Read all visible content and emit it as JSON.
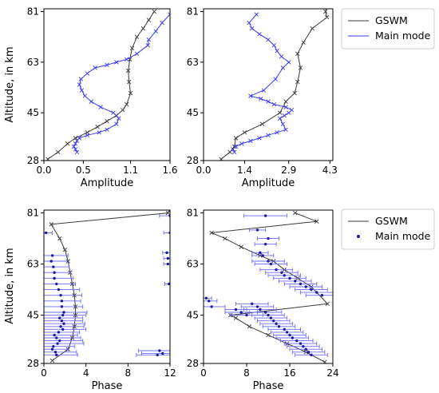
{
  "ylabel": "Altitude, in km",
  "legend_top": [
    "GSWM",
    "Main mode"
  ],
  "legend_bottom": [
    "GSWM",
    "Main mode"
  ],
  "colors": {
    "gswm": "#3a3a3a",
    "main": "#3b3bf5"
  },
  "chart_data": [
    {
      "type": "line",
      "xlabel": "Amplitude",
      "xlim": [
        0,
        1.6
      ],
      "ylim": [
        28,
        82
      ],
      "xticks": [
        0.0,
        0.5,
        1.1,
        1.6
      ],
      "xtick_labels": [
        "0.0",
        "0.5",
        "1.1",
        "1.6"
      ],
      "yticks": [
        28,
        45,
        63,
        81
      ],
      "ytick_labels": [
        "28",
        "45",
        "63",
        "81"
      ],
      "series": [
        {
          "name": "GSWM",
          "x": [
            0.05,
            0.18,
            0.3,
            0.4,
            0.55,
            0.68,
            0.8,
            0.92,
            1.0,
            1.05,
            1.1,
            1.08,
            1.07,
            1.09,
            1.12,
            1.18,
            1.26,
            1.33,
            1.4
          ],
          "y": [
            28.5,
            31,
            34,
            36,
            38,
            40,
            42,
            44,
            46,
            48,
            52,
            56,
            60,
            64,
            68,
            72,
            75,
            78,
            81
          ]
        },
        {
          "name": "Main mode",
          "x": [
            0.42,
            0.4,
            0.38,
            0.4,
            0.42,
            0.45,
            0.55,
            0.7,
            0.8,
            0.92,
            0.95,
            0.88,
            0.72,
            0.6,
            0.52,
            0.48,
            0.45,
            0.47,
            0.55,
            0.65,
            0.8,
            0.92,
            1.05,
            1.18,
            1.32,
            1.33,
            1.42,
            1.5,
            1.6
          ],
          "y": [
            31,
            32,
            33,
            34,
            35,
            36,
            37,
            38,
            39,
            41,
            43,
            45,
            47,
            49,
            51,
            53,
            55,
            57,
            59,
            61,
            62,
            63,
            64,
            66,
            69,
            71,
            74,
            77,
            80
          ]
        }
      ]
    },
    {
      "type": "line",
      "xlabel": "Amplitude",
      "xlim": [
        0,
        4.4
      ],
      "ylim": [
        28,
        82
      ],
      "xticks": [
        0.0,
        1.4,
        2.9,
        4.3
      ],
      "xtick_labels": [
        "0.0",
        "1.4",
        "2.9",
        "4.3"
      ],
      "yticks": [
        28,
        45,
        63,
        81
      ],
      "ytick_labels": [
        "28",
        "45",
        "63",
        "81"
      ],
      "series": [
        {
          "name": "GSWM",
          "x": [
            0.6,
            0.9,
            1.05,
            1.1,
            1.4,
            2.0,
            2.6,
            2.8,
            3.1,
            3.2,
            3.3,
            3.2,
            3.4,
            3.7,
            4.2,
            4.15,
            4.2,
            4.3
          ],
          "y": [
            28.5,
            31,
            33,
            36,
            38,
            41,
            45,
            49,
            52,
            56,
            61,
            66,
            70,
            75,
            79,
            81,
            83,
            85
          ]
        },
        {
          "name": "Main mode",
          "x": [
            1.05,
            1.0,
            1.1,
            1.3,
            1.6,
            1.9,
            2.2,
            2.5,
            2.8,
            2.7,
            2.6,
            2.75,
            2.9,
            3.0,
            2.8,
            2.4,
            2.2,
            1.95,
            1.6,
            2.05,
            2.45,
            2.7,
            2.9,
            2.65,
            2.5,
            2.4,
            2.2,
            1.9,
            1.65,
            1.55,
            1.8
          ],
          "y": [
            31,
            32,
            33,
            34,
            35,
            36,
            37,
            38,
            39,
            41,
            43,
            44,
            45,
            46,
            47,
            48,
            49,
            50,
            51,
            53,
            57,
            61,
            63,
            65,
            67,
            69,
            71,
            73,
            75,
            77,
            80
          ]
        }
      ]
    },
    {
      "type": "scatter",
      "xlabel": "Phase",
      "xlim": [
        0,
        12
      ],
      "ylim": [
        28,
        82
      ],
      "xticks": [
        0,
        4,
        8,
        12
      ],
      "xtick_labels": [
        "0",
        "4",
        "8",
        "12"
      ],
      "yticks": [
        28,
        45,
        63,
        81
      ],
      "ytick_labels": [
        "28",
        "45",
        "63",
        "81"
      ],
      "series": [
        {
          "name": "GSWM",
          "x": [
            0.8,
            2.3,
            2.7,
            2.9,
            3.0,
            3.0,
            2.9,
            2.7,
            2.5,
            2.3,
            2.0,
            1.5,
            0.7,
            11.8,
            12.0
          ],
          "y": [
            29,
            33,
            37,
            41,
            45,
            48,
            52,
            56,
            60,
            64,
            68,
            72,
            77,
            81,
            82
          ]
        },
        {
          "name": "Main mode",
          "x": [
            10.8,
            11.3,
            11.0,
            1.2,
            1.1,
            0.8,
            0.9,
            1.3,
            1.5,
            1.2,
            1.0,
            1.4,
            1.8,
            1.6,
            1.9,
            1.7,
            1.5,
            1.8,
            1.9,
            1.7,
            1.7,
            1.6,
            1.4,
            1.2,
            1.0,
            1.0,
            0.9,
            0.7,
            0.8,
            11.9,
            11.8,
            11.8,
            11.7,
            12.0,
            0.2,
            12.0
          ],
          "xerr": [
            2.0,
            2.0,
            2.0,
            2.0,
            2.0,
            1.5,
            2.0,
            2.5,
            2.2,
            2.3,
            2.2,
            2.0,
            2.2,
            2.2,
            2.0,
            2.0,
            2.2,
            2.2,
            2.2,
            2.0,
            1.8,
            2.0,
            2.0,
            1.8,
            1.8,
            1.5,
            1.5,
            1.5,
            1.5,
            0.4,
            0.4,
            0.4,
            0.4,
            0.6,
            0.6,
            1.0
          ],
          "y": [
            31,
            31.5,
            32.5,
            31,
            32,
            33,
            34,
            35,
            36,
            37,
            38,
            39,
            40,
            41,
            42,
            43,
            44,
            45,
            46,
            48,
            50,
            52,
            54,
            56,
            58,
            60,
            62,
            64,
            66,
            56,
            63,
            65,
            67,
            74,
            74,
            80
          ]
        }
      ]
    },
    {
      "type": "scatter",
      "xlabel": "Phase",
      "xlim": [
        0,
        24
      ],
      "ylim": [
        28,
        82
      ],
      "xticks": [
        0,
        8,
        16,
        24
      ],
      "xtick_labels": [
        "0",
        "8",
        "16",
        "24"
      ],
      "yticks": [
        28,
        45,
        63,
        81
      ],
      "ytick_labels": [
        "28",
        "45",
        "63",
        "81"
      ],
      "series": [
        {
          "name": "GSWM",
          "x": [
            22.5,
            19.0,
            15.5,
            12.0,
            8.5,
            6.0,
            5.0,
            23.0,
            20.0,
            17.5,
            15.0,
            13.0,
            10.5,
            7.0,
            4.0,
            1.5,
            21.0,
            17.0
          ],
          "y": [
            28.5,
            32,
            35,
            38,
            41,
            44,
            45,
            49,
            55,
            58,
            61,
            64,
            66,
            69,
            72,
            74,
            78,
            81
          ]
        },
        {
          "name": "Main mode",
          "x": [
            20.0,
            19.5,
            19.0,
            18.5,
            18.0,
            17.3,
            16.5,
            16.0,
            15.5,
            15.0,
            14.0,
            13.5,
            13.0,
            12.5,
            12.0,
            11.5,
            10.5,
            10.0,
            9.0,
            8.0,
            7.0,
            6.0,
            1.5,
            1.0,
            0.5,
            22.0,
            21.0,
            20.0,
            19.0,
            18.0,
            17.0,
            16.0,
            15.0,
            14.5,
            13.5,
            12.5,
            12.0,
            11.0,
            10.5,
            11.5,
            12.0,
            10.0,
            11.5
          ],
          "xerr": [
            3,
            3,
            3,
            3,
            3,
            3,
            3,
            3,
            3,
            3,
            3,
            3,
            3,
            3,
            3,
            3,
            3,
            3,
            3,
            3,
            3,
            2,
            2.5,
            1.5,
            1.0,
            3,
            3,
            3,
            3,
            3,
            3,
            3,
            3,
            3,
            3,
            3,
            3,
            2,
            1.5,
            2,
            2,
            1.5,
            4
          ],
          "y": [
            31,
            32,
            33,
            34,
            35,
            36,
            37,
            38,
            39,
            40,
            41,
            42,
            43,
            44,
            45,
            46,
            47,
            48,
            49,
            45,
            46,
            47,
            48,
            50,
            51,
            52,
            53,
            54,
            55,
            56,
            57,
            58,
            59,
            60,
            61,
            63,
            64,
            66,
            67,
            70,
            72,
            75,
            80
          ]
        }
      ]
    }
  ]
}
